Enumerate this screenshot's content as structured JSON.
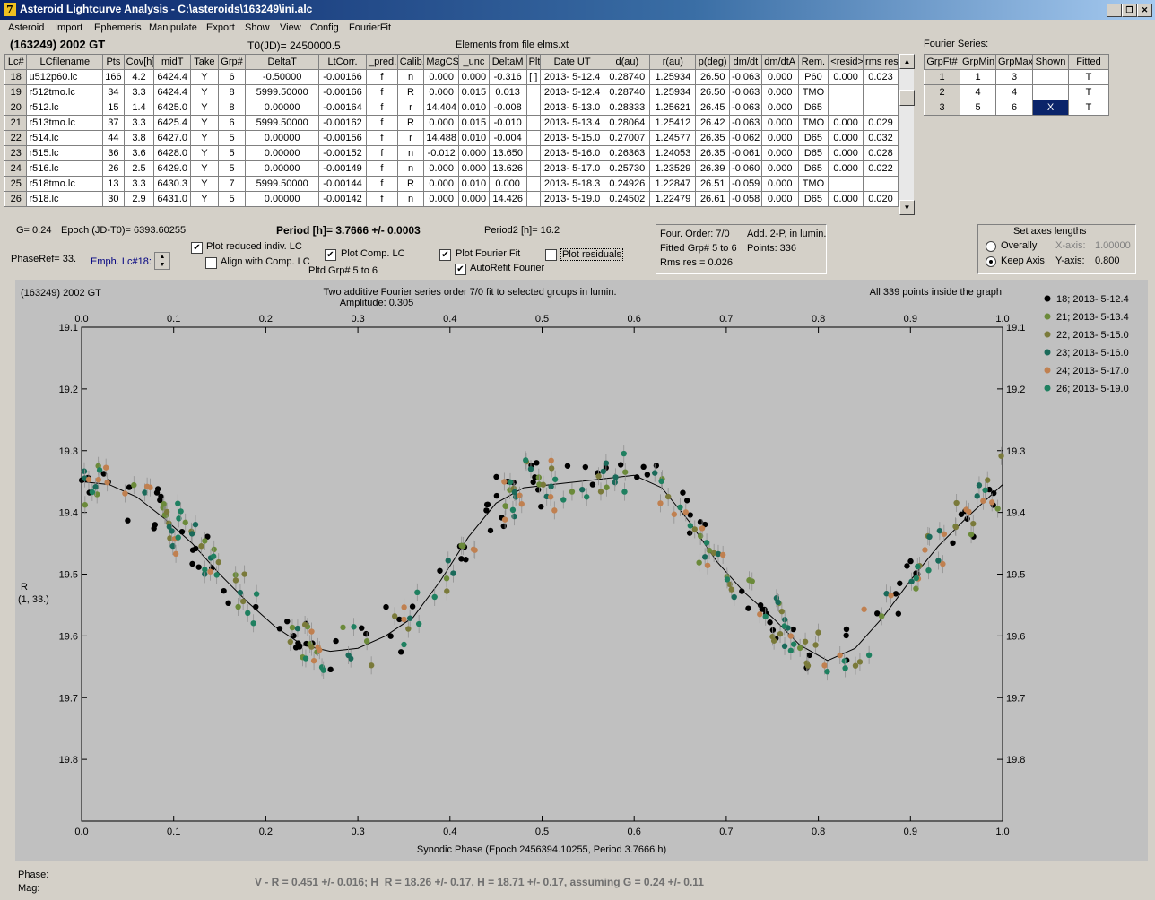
{
  "window": {
    "title": "Asteroid Lightcurve Analysis - C:\\asteroids\\163249\\ini.alc",
    "icon": "7"
  },
  "menu": [
    "Asteroid",
    "Import",
    "Ephemeris",
    "Manipulate",
    "Export",
    "Show",
    "View",
    "Config",
    "FourierFit"
  ],
  "header": {
    "object": "(163249) 2002 GT",
    "t0": "T0(JD)= 2450000.5",
    "elements": "Elements from file elms.xt",
    "fourier_series_label": "Fourier Series:"
  },
  "lc_table": {
    "columns": [
      "Lc#",
      "LCfilename",
      "Pts",
      "Cov[h]",
      "midT",
      "Take",
      "Grp#",
      "DeltaT",
      "LtCorr.",
      "_pred.",
      "Calib.",
      "MagCS",
      "_unc",
      "DeltaM",
      "Plt",
      "Date UT",
      "d(au)",
      "r(au)",
      "p(deg)",
      "dm/dt",
      "dm/dtA",
      "Rem.",
      "<resid>",
      "rms res"
    ],
    "rows": [
      [
        "18",
        "u512p60.lc",
        "166",
        "4.2",
        "6424.4",
        "Y",
        "6",
        "-0.50000",
        "-0.00166",
        "f",
        "n",
        "0.000",
        "0.000",
        "-0.316",
        "[ ]",
        "2013- 5-12.4",
        "0.28740",
        "1.25934",
        "26.50",
        "-0.063",
        "0.000",
        "P60",
        "0.000",
        "0.023"
      ],
      [
        "19",
        "r512tmo.lc",
        "34",
        "3.3",
        "6424.4",
        "Y",
        "8",
        "5999.50000",
        "-0.00166",
        "f",
        "R",
        "0.000",
        "0.015",
        "0.013",
        "",
        "2013- 5-12.4",
        "0.28740",
        "1.25934",
        "26.50",
        "-0.063",
        "0.000",
        "TMO",
        "",
        ""
      ],
      [
        "20",
        "r512.lc",
        "15",
        "1.4",
        "6425.0",
        "Y",
        "8",
        "0.00000",
        "-0.00164",
        "f",
        "r",
        "14.404",
        "0.010",
        "-0.008",
        "",
        "2013- 5-13.0",
        "0.28333",
        "1.25621",
        "26.45",
        "-0.063",
        "0.000",
        "D65",
        "",
        ""
      ],
      [
        "21",
        "r513tmo.lc",
        "37",
        "3.3",
        "6425.4",
        "Y",
        "6",
        "5999.50000",
        "-0.00162",
        "f",
        "R",
        "0.000",
        "0.015",
        "-0.010",
        "",
        "2013- 5-13.4",
        "0.28064",
        "1.25412",
        "26.42",
        "-0.063",
        "0.000",
        "TMO",
        "0.000",
        "0.029"
      ],
      [
        "22",
        "r514.lc",
        "44",
        "3.8",
        "6427.0",
        "Y",
        "5",
        "0.00000",
        "-0.00156",
        "f",
        "r",
        "14.488",
        "0.010",
        "-0.004",
        "",
        "2013- 5-15.0",
        "0.27007",
        "1.24577",
        "26.35",
        "-0.062",
        "0.000",
        "D65",
        "0.000",
        "0.032"
      ],
      [
        "23",
        "r515.lc",
        "36",
        "3.6",
        "6428.0",
        "Y",
        "5",
        "0.00000",
        "-0.00152",
        "f",
        "n",
        "-0.012",
        "0.000",
        "13.650",
        "",
        "2013- 5-16.0",
        "0.26363",
        "1.24053",
        "26.35",
        "-0.061",
        "0.000",
        "D65",
        "0.000",
        "0.028"
      ],
      [
        "24",
        "r516.lc",
        "26",
        "2.5",
        "6429.0",
        "Y",
        "5",
        "0.00000",
        "-0.00149",
        "f",
        "n",
        "0.000",
        "0.000",
        "13.626",
        "",
        "2013- 5-17.0",
        "0.25730",
        "1.23529",
        "26.39",
        "-0.060",
        "0.000",
        "D65",
        "0.000",
        "0.022"
      ],
      [
        "25",
        "r518tmo.lc",
        "13",
        "3.3",
        "6430.3",
        "Y",
        "7",
        "5999.50000",
        "-0.00144",
        "f",
        "R",
        "0.000",
        "0.010",
        "0.000",
        "",
        "2013- 5-18.3",
        "0.24926",
        "1.22847",
        "26.51",
        "-0.059",
        "0.000",
        "TMO",
        "",
        ""
      ],
      [
        "26",
        "r518.lc",
        "30",
        "2.9",
        "6431.0",
        "Y",
        "5",
        "0.00000",
        "-0.00142",
        "f",
        "n",
        "0.000",
        "0.000",
        "14.426",
        "",
        "2013- 5-19.0",
        "0.24502",
        "1.22479",
        "26.61",
        "-0.058",
        "0.000",
        "D65",
        "0.000",
        "0.020"
      ]
    ]
  },
  "fourier_table": {
    "columns": [
      "GrpFt#",
      "GrpMin",
      "GrpMax",
      "Shown",
      "Fitted"
    ],
    "rows": [
      [
        "1",
        "1",
        "3",
        "",
        "T"
      ],
      [
        "2",
        "4",
        "4",
        "",
        "T"
      ],
      [
        "3",
        "5",
        "6",
        "X",
        "T"
      ]
    ]
  },
  "controls": {
    "g": "G= 0.24",
    "epoch": "Epoch (JD-T0)= 6393.60255",
    "period": "Period [h]= 3.7666 +/- 0.0003",
    "period2": "Period2 [h]= 16.2",
    "phase_ref": "PhaseRef= 33.",
    "emph": "Emph. Lc#18:",
    "plot_reduced": "Plot reduced indiv. LC",
    "align": "Align with Comp. LC",
    "plot_comp": "Plot Comp. LC",
    "pltd": "Pltd Grp#  5  to  6",
    "plot_fourier": "Plot Fourier Fit",
    "autorefit": "AutoRefit Fourier",
    "plot_residuals": "Plot residuals",
    "four_order": "Four. Order:  7/0",
    "add": "Add. 2-P, in lumin.",
    "fitted": "Fitted Grp# 5 to 6",
    "points": "Points: 336",
    "rms": "Rms res     = 0.026",
    "set_axes": "Set axes lengths",
    "overally": "Overally",
    "keep_axis": "Keep Axis",
    "x_axis_label": "X-axis:",
    "x_axis_val": "1.00000",
    "y_axis_label": "Y-axis:",
    "y_axis_val": "0.800"
  },
  "chart_data": {
    "type": "scatter",
    "title": "Two additive Fourier series order 7/0 fit to selected groups in lumin.",
    "subtitle": "Amplitude: 0.305",
    "object": "(163249) 2002 GT",
    "points_note": "All 339 points inside the graph",
    "xlabel": "Synodic Phase (Epoch 2456394.10255, Period 3.7666 h)",
    "ylabel": "R",
    "ylabel2": "(1, 33.)",
    "xlim": [
      0,
      1
    ],
    "ylim": [
      19.9,
      19.1
    ],
    "x_ticks": [
      "0.0",
      "0.1",
      "0.2",
      "0.3",
      "0.4",
      "0.5",
      "0.6",
      "0.7",
      "0.8",
      "0.9",
      "1.0"
    ],
    "y_ticks": [
      "19.1",
      "19.2",
      "19.3",
      "19.4",
      "19.5",
      "19.6",
      "19.7",
      "19.8"
    ],
    "fit_curve": [
      [
        0,
        19.35
      ],
      [
        0.03,
        19.355
      ],
      [
        0.06,
        19.375
      ],
      [
        0.09,
        19.41
      ],
      [
        0.12,
        19.45
      ],
      [
        0.15,
        19.5
      ],
      [
        0.18,
        19.545
      ],
      [
        0.21,
        19.585
      ],
      [
        0.24,
        19.615
      ],
      [
        0.27,
        19.625
      ],
      [
        0.3,
        19.62
      ],
      [
        0.33,
        19.6
      ],
      [
        0.36,
        19.57
      ],
      [
        0.39,
        19.51
      ],
      [
        0.42,
        19.44
      ],
      [
        0.45,
        19.385
      ],
      [
        0.48,
        19.36
      ],
      [
        0.51,
        19.355
      ],
      [
        0.54,
        19.35
      ],
      [
        0.57,
        19.345
      ],
      [
        0.6,
        19.34
      ],
      [
        0.63,
        19.36
      ],
      [
        0.66,
        19.415
      ],
      [
        0.69,
        19.48
      ],
      [
        0.72,
        19.53
      ],
      [
        0.75,
        19.57
      ],
      [
        0.78,
        19.615
      ],
      [
        0.81,
        19.64
      ],
      [
        0.84,
        19.62
      ],
      [
        0.87,
        19.57
      ],
      [
        0.9,
        19.51
      ],
      [
        0.93,
        19.455
      ],
      [
        0.96,
        19.41
      ],
      [
        1.0,
        19.355
      ]
    ],
    "series": [
      {
        "name": "18; 2013- 5-12.4",
        "color": "#000000"
      },
      {
        "name": "21; 2013- 5-13.4",
        "color": "#6b8a3a"
      },
      {
        "name": "22; 2013- 5-15.0",
        "color": "#7a7a3a"
      },
      {
        "name": "23; 2013- 5-16.0",
        "color": "#1a6a5a"
      },
      {
        "name": "24; 2013- 5-17.0",
        "color": "#c08050"
      },
      {
        "name": "26; 2013- 5-19.0",
        "color": "#1f8060"
      }
    ]
  },
  "footer": {
    "phase": "Phase:",
    "mag": "Mag:",
    "result": "V - R = 0.451 +/- 0.016; H_R = 18.26 +/- 0.17, H = 18.71 +/- 0.17, assuming G = 0.24 +/- 0.11"
  }
}
